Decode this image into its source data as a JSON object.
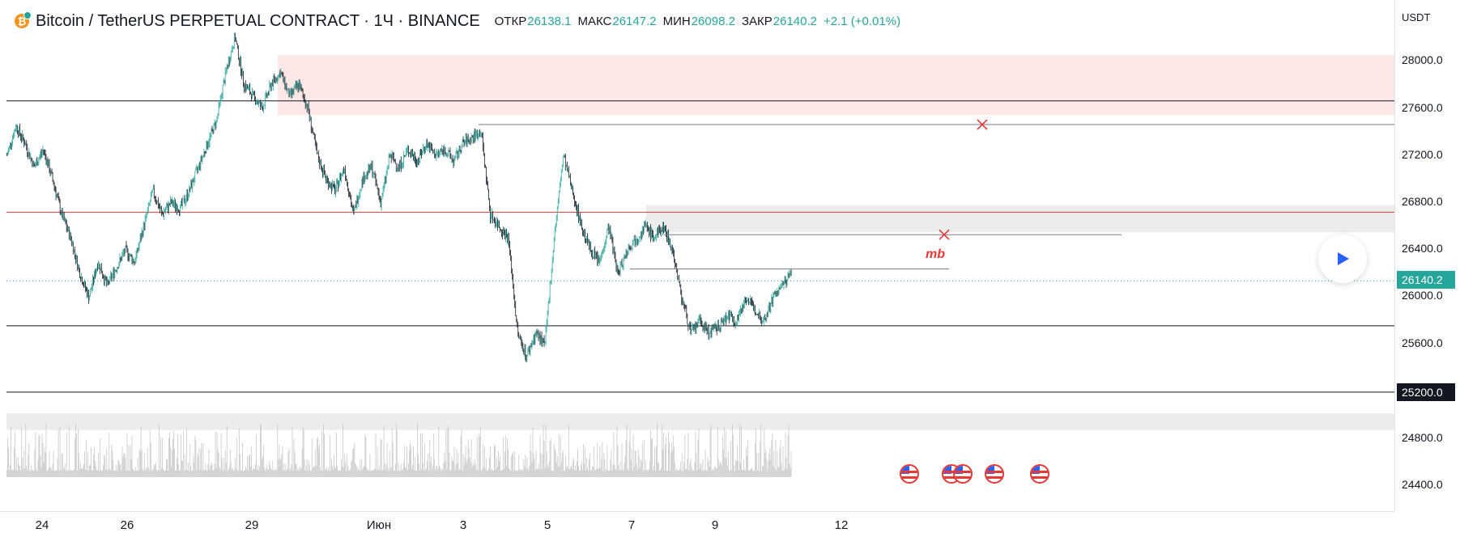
{
  "header": {
    "coin_letter": "₿",
    "title": "Bitcoin / TetherUS PERPETUAL CONTRACT · 1Ч · BINANCE",
    "ohlc": [
      {
        "key": "ОТКР",
        "value": "26138.1"
      },
      {
        "key": "МАКС",
        "value": "26147.2"
      },
      {
        "key": "МИН",
        "value": "26098.2"
      },
      {
        "key": "ЗАКР",
        "value": "26140.2"
      },
      {
        "key": "",
        "value": "+2.1 (+0.01%)"
      }
    ]
  },
  "price_axis": {
    "unit": "USDT",
    "labels": [
      "28000.0",
      "27600.0",
      "27200.0",
      "26800.0",
      "26400.0",
      "26000.0",
      "25600.0",
      "24800.0",
      "24400.0"
    ],
    "last_price_tag": "26140.2",
    "level_tag": "25200.0"
  },
  "time_axis": {
    "labels": [
      "24",
      "26",
      "29",
      "Июн",
      "3",
      "5",
      "7",
      "9",
      "12"
    ]
  },
  "annotations": {
    "mb_label": "mb"
  },
  "colors": {
    "up": "#26a69a",
    "down": "#131722",
    "accent_red": "#e53935",
    "accent_blue": "#2962ff"
  },
  "chart_data": {
    "type": "candlestick",
    "symbol": "BTCUSDT.P",
    "timeframe": "1Ч",
    "ylim": [
      24200,
      28400
    ],
    "levels": [
      27660,
      26720,
      25760,
      25200
    ],
    "last_price": 26140.2,
    "zones": [
      {
        "from": 27540,
        "to": 28050,
        "color": "#fde8e8"
      },
      {
        "from": 26550,
        "to": 26780,
        "color": "#ececec"
      },
      {
        "from": 24880,
        "to": 25020,
        "color": "#ececec"
      }
    ],
    "path": [
      27200,
      27450,
      27300,
      27100,
      27250,
      27000,
      26700,
      26500,
      26200,
      26000,
      26300,
      26100,
      26250,
      26400,
      26300,
      26600,
      26900,
      26700,
      26800,
      26750,
      26900,
      27100,
      27300,
      27500,
      27900,
      28200,
      27800,
      27700,
      27600,
      27800,
      27900,
      27700,
      27800,
      27600,
      27200,
      27000,
      26900,
      27100,
      26700,
      27000,
      27100,
      26800,
      27200,
      27100,
      27250,
      27150,
      27300,
      27200,
      27250,
      27150,
      27300,
      27350,
      27400,
      26700,
      26600,
      26500,
      25700,
      25500,
      25700,
      25600,
      26500,
      27200,
      26900,
      26600,
      26400,
      26300,
      26600,
      26200,
      26400,
      26500,
      26600,
      26500,
      26600,
      26400,
      26000,
      25700,
      25800,
      25700,
      25750,
      25850,
      25800,
      26000,
      25900,
      25800,
      26000,
      26100,
      26200
    ]
  }
}
